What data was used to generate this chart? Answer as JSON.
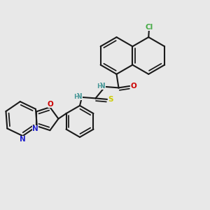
{
  "background_color": "#e8e8e8",
  "bond_color": "#1a1a1a",
  "colors": {
    "N": "#4a9999",
    "O": "#cc0000",
    "S": "#cccc00",
    "Cl": "#44aa44",
    "C": "#1a1a1a",
    "N_ring": "#2222cc"
  },
  "figsize": [
    3.0,
    3.0
  ],
  "dpi": 100
}
